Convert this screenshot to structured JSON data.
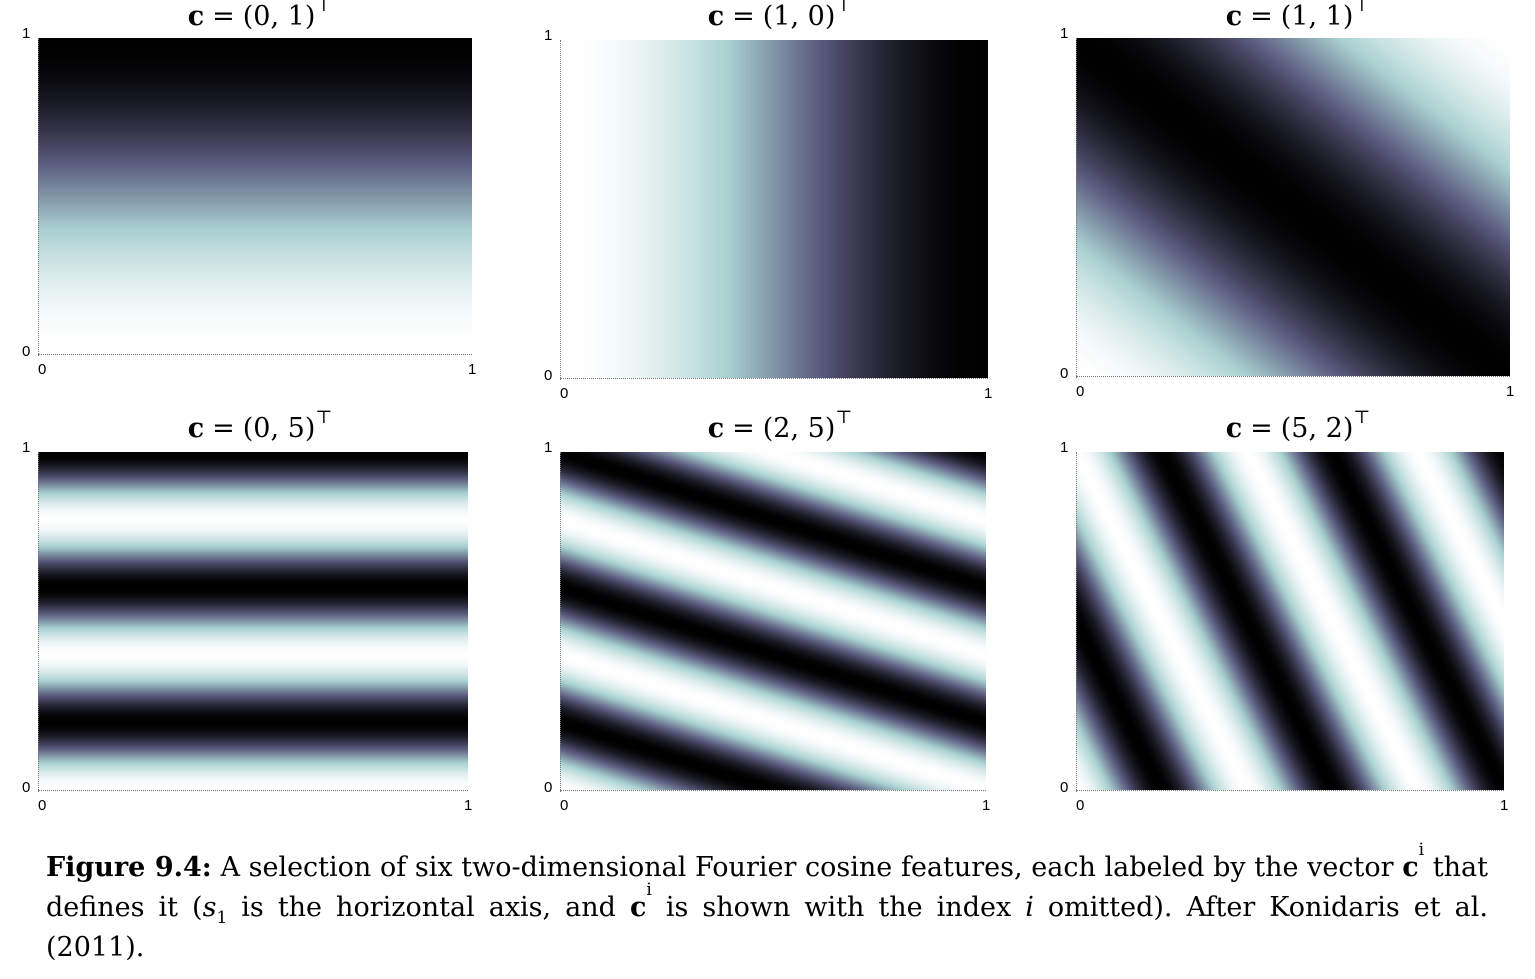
{
  "panels": [
    {
      "c": [
        0,
        1
      ],
      "vec_label": "c",
      "eq": "=",
      "tuple": "(0, 1)",
      "sup": "⊤",
      "ticks": {
        "y_top": "1",
        "y_bottom": "0",
        "x_left": "0",
        "x_right": "1"
      }
    },
    {
      "c": [
        1,
        0
      ],
      "vec_label": "c",
      "eq": "=",
      "tuple": "(1, 0)",
      "sup": "⊤",
      "ticks": {
        "y_top": "1",
        "y_bottom": "0",
        "x_left": "0",
        "x_right": "1"
      }
    },
    {
      "c": [
        1,
        1
      ],
      "vec_label": "c",
      "eq": "=",
      "tuple": "(1, 1)",
      "sup": "⊤",
      "ticks": {
        "y_top": "1",
        "y_bottom": "0",
        "x_left": "0",
        "x_right": "1"
      }
    },
    {
      "c": [
        0,
        5
      ],
      "vec_label": "c",
      "eq": "=",
      "tuple": "(0, 5)",
      "sup": "⊤",
      "ticks": {
        "y_top": "1",
        "y_bottom": "0",
        "x_left": "0",
        "x_right": "1"
      }
    },
    {
      "c": [
        2,
        5
      ],
      "vec_label": "c",
      "eq": "=",
      "tuple": "(2, 5)",
      "sup": "⊤",
      "ticks": {
        "y_top": "1",
        "y_bottom": "0",
        "x_left": "0",
        "x_right": "1"
      }
    },
    {
      "c": [
        5,
        2
      ],
      "vec_label": "c",
      "eq": "=",
      "tuple": "(5, 2)",
      "sup": "⊤",
      "ticks": {
        "y_top": "1",
        "y_bottom": "0",
        "x_left": "0",
        "x_right": "1"
      }
    }
  ],
  "colormap": [
    "#000000",
    "#5a5a7e",
    "#a9d1d1",
    "#ffffff"
  ],
  "caption": {
    "label": "Figure 9.4:",
    "part1": "A selection of six two-dimensional Fourier cosine features, each labeled by the vector",
    "c1": "c",
    "sup_i": "i",
    "part2": "that defines it (",
    "s": "s",
    "sub1": "1",
    "part3": "is the horizontal axis, and",
    "c2": "c",
    "sup_i2": "i",
    "part4": "is shown with the index",
    "i": "i",
    "part5": "omitted). After Konidaris et al. (2011)."
  }
}
